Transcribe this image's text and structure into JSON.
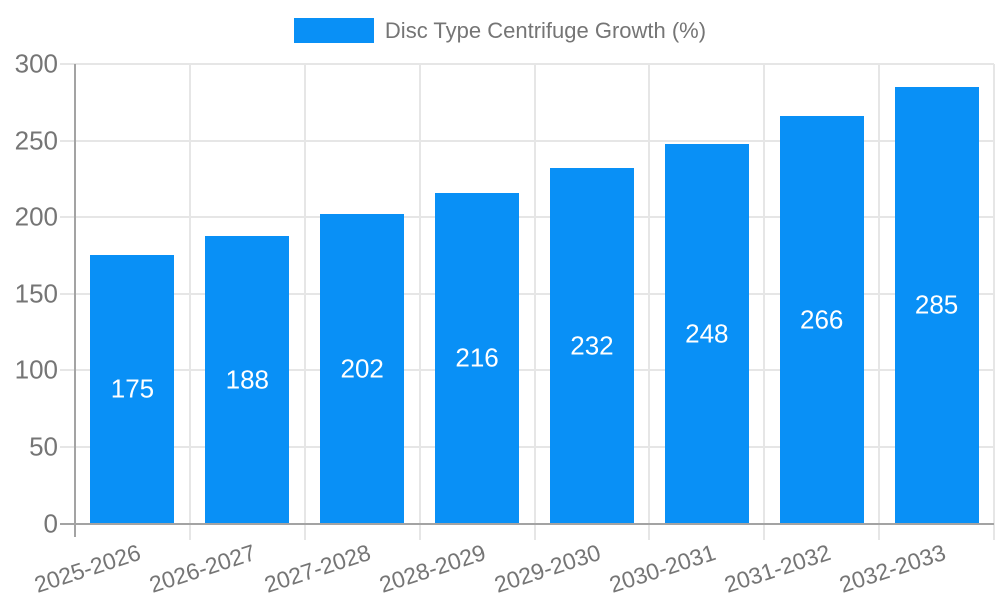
{
  "legend": {
    "label": "Disc Type Centrifuge Growth (%)"
  },
  "colors": {
    "bar": "#0990f6",
    "grid": "#e6e6e6",
    "axis": "#a3a3a3",
    "tick_label": "#757575",
    "bar_label": "#ffffff",
    "background": "#ffffff"
  },
  "chart_data": {
    "type": "bar",
    "categories": [
      "2025-2026",
      "2026-2027",
      "2027-2028",
      "2028-2029",
      "2029-2030",
      "2030-2031",
      "2031-2032",
      "2032-2033"
    ],
    "values": [
      175,
      188,
      202,
      216,
      232,
      248,
      266,
      285
    ],
    "series": [
      {
        "name": "Disc Type Centrifuge Growth (%)",
        "values": [
          175,
          188,
          202,
          216,
          232,
          248,
          266,
          285
        ]
      }
    ],
    "title": "",
    "xlabel": "",
    "ylabel": "",
    "ylim": [
      0,
      300
    ],
    "yticks": [
      0,
      50,
      100,
      150,
      200,
      250,
      300
    ],
    "grid": true,
    "legend_position": "top-center",
    "value_labels": "inside-middle",
    "x_tick_rotation_deg": -18
  }
}
